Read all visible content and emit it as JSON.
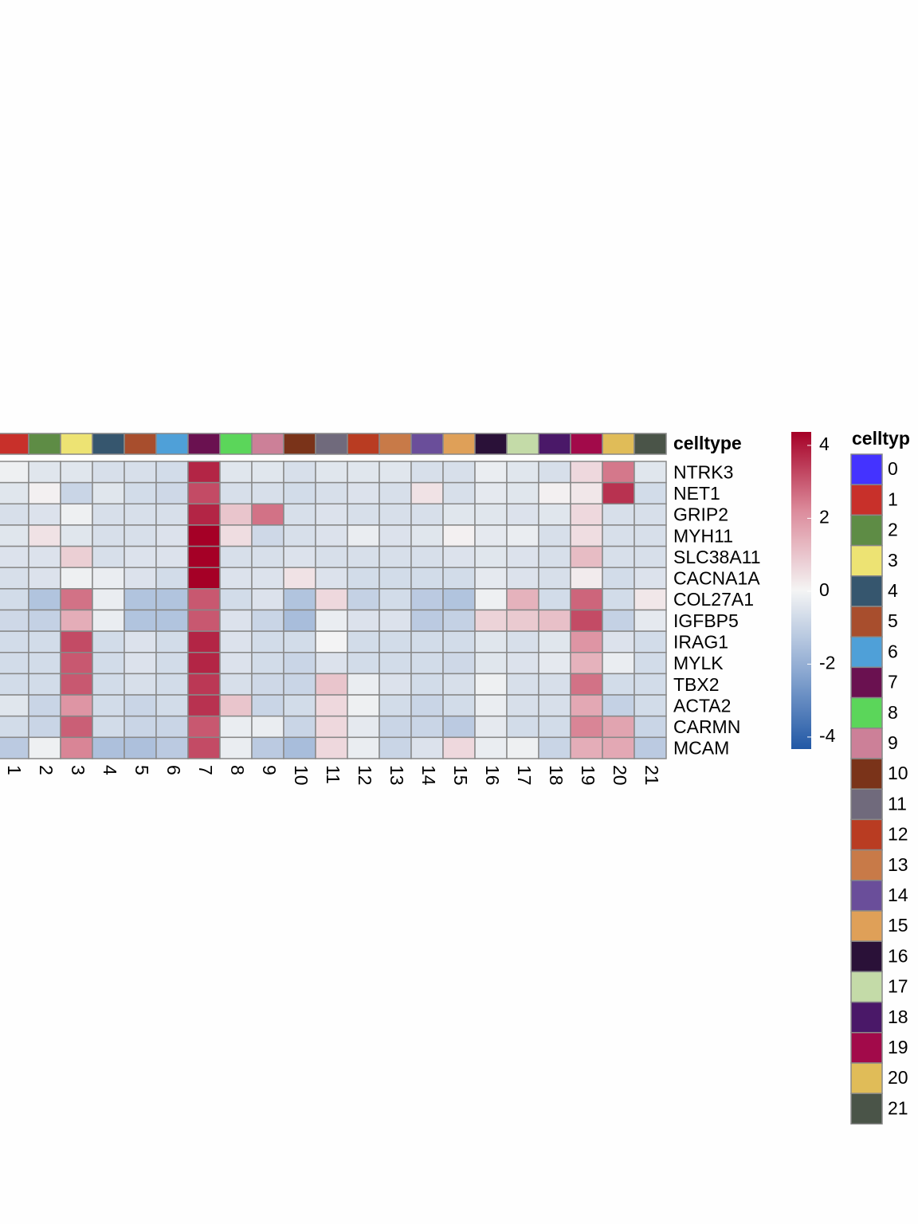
{
  "chart_data": {
    "type": "heatmap",
    "columns": [
      "1",
      "2",
      "3",
      "4",
      "5",
      "6",
      "7",
      "8",
      "9",
      "10",
      "11",
      "12",
      "13",
      "14",
      "15",
      "16",
      "17",
      "18",
      "19",
      "20",
      "21"
    ],
    "rows": [
      "NTRK3",
      "NET1",
      "GRIP2",
      "MYH11",
      "SLC38A11",
      "CACNA1A",
      "COL27A1",
      "IGFBP5",
      "IRAG1",
      "MYLK",
      "TBX2",
      "ACTA2",
      "CARMN",
      "MCAM"
    ],
    "values": [
      [
        -0.1,
        -0.4,
        -0.4,
        -0.6,
        -0.6,
        -0.7,
        3.8,
        -0.4,
        -0.4,
        -0.6,
        -0.4,
        -0.4,
        -0.4,
        -0.6,
        -0.6,
        -0.2,
        -0.4,
        -0.6,
        0.6,
        2.5,
        -0.4
      ],
      [
        -0.4,
        0.1,
        -0.9,
        -0.4,
        -0.7,
        -0.8,
        3.2,
        -0.6,
        -0.6,
        -0.7,
        -0.6,
        -0.5,
        -0.6,
        0.4,
        -0.6,
        -0.3,
        -0.4,
        0.1,
        0.3,
        3.6,
        -0.7
      ],
      [
        -0.6,
        -0.5,
        -0.1,
        -0.6,
        -0.6,
        -0.6,
        3.8,
        1.0,
        2.6,
        -0.6,
        -0.5,
        -0.6,
        -0.6,
        -0.6,
        -0.4,
        -0.4,
        -0.5,
        -0.4,
        0.6,
        -0.6,
        -0.6
      ],
      [
        -0.4,
        0.4,
        -0.4,
        -0.6,
        -0.6,
        -0.5,
        4.4,
        0.5,
        -0.8,
        -0.6,
        -0.5,
        -0.2,
        -0.5,
        -0.4,
        0.1,
        -0.3,
        -0.2,
        -0.6,
        0.5,
        -0.6,
        -0.6
      ],
      [
        -0.5,
        -0.5,
        0.8,
        -0.6,
        -0.5,
        -0.5,
        4.4,
        -0.6,
        -0.6,
        -0.5,
        -0.6,
        -0.6,
        -0.6,
        -0.6,
        -0.5,
        -0.4,
        -0.5,
        -0.6,
        1.2,
        -0.6,
        -0.6
      ],
      [
        -0.6,
        -0.5,
        -0.1,
        -0.2,
        -0.5,
        -0.7,
        4.4,
        -0.5,
        -0.5,
        0.4,
        -0.5,
        -0.7,
        -0.7,
        -0.7,
        -0.7,
        -0.3,
        -0.5,
        -0.6,
        0.2,
        -0.7,
        -0.5
      ],
      [
        -0.7,
        -1.4,
        2.6,
        -0.2,
        -1.4,
        -1.4,
        3.0,
        -0.7,
        -0.5,
        -1.4,
        0.6,
        -1.0,
        -0.7,
        -1.2,
        -1.4,
        -0.1,
        1.4,
        -0.7,
        2.8,
        -0.7,
        0.3
      ],
      [
        -0.8,
        -1.0,
        1.5,
        -0.2,
        -1.4,
        -1.4,
        3.0,
        -0.5,
        -0.9,
        -1.6,
        -0.2,
        -0.5,
        -0.5,
        -1.2,
        -1.0,
        0.7,
        0.9,
        1.1,
        3.2,
        -1.0,
        -0.3
      ],
      [
        -0.7,
        -0.7,
        3.2,
        -0.7,
        -0.5,
        -0.7,
        3.8,
        -0.5,
        -0.7,
        -0.7,
        0.0,
        -0.7,
        -0.7,
        -0.7,
        -0.7,
        -0.4,
        -0.6,
        -0.4,
        2.0,
        -0.5,
        -0.7
      ],
      [
        -0.7,
        -0.7,
        3.0,
        -0.7,
        -0.5,
        -0.7,
        3.8,
        -0.5,
        -0.7,
        -0.9,
        -0.5,
        -0.7,
        -0.7,
        -0.7,
        -0.8,
        -0.4,
        -0.5,
        -0.3,
        1.4,
        -0.2,
        -0.7
      ],
      [
        -0.7,
        -0.7,
        3.0,
        -0.7,
        -0.6,
        -0.7,
        3.5,
        -0.6,
        -0.8,
        -0.9,
        1.0,
        -0.2,
        -0.5,
        -0.7,
        -0.6,
        -0.1,
        -0.6,
        -0.6,
        2.6,
        -0.7,
        -0.7
      ],
      [
        -0.4,
        -0.9,
        2.0,
        -0.7,
        -0.9,
        -0.7,
        3.6,
        1.0,
        -0.9,
        -0.7,
        0.6,
        -0.1,
        -0.7,
        -0.9,
        -0.7,
        -0.2,
        -0.6,
        -0.6,
        1.6,
        -1.0,
        -0.7
      ],
      [
        -0.7,
        -0.9,
        2.9,
        -0.7,
        -0.9,
        -0.9,
        3.0,
        -0.2,
        -0.2,
        -0.9,
        0.6,
        -0.3,
        -0.9,
        -0.9,
        -1.2,
        -0.3,
        -0.7,
        -0.7,
        2.3,
        1.7,
        -0.9
      ],
      [
        -1.2,
        -0.1,
        2.3,
        -1.5,
        -1.5,
        -1.2,
        3.2,
        -0.2,
        -1.2,
        -1.6,
        0.6,
        -0.2,
        -0.9,
        -0.5,
        0.6,
        -0.2,
        -0.1,
        -0.9,
        1.5,
        1.6,
        -1.2
      ]
    ],
    "annotation_label": "celltype",
    "clim": [
      -4.33,
      4.37
    ],
    "colorbar_ticks": [
      4,
      2,
      0,
      -2,
      -4
    ],
    "colormap": [
      "#2158a5",
      "#8eaad2",
      "#f4f4f4",
      "#dc8c9c",
      "#a50026"
    ],
    "legend": {
      "title": "celltyp",
      "categories": [
        "0",
        "1",
        "2",
        "3",
        "4",
        "5",
        "6",
        "7",
        "8",
        "9",
        "10",
        "11",
        "12",
        "13",
        "14",
        "15",
        "16",
        "17",
        "18",
        "19",
        "20",
        "21"
      ],
      "colors": [
        "#4433ff",
        "#c8302a",
        "#5e8c45",
        "#ede373",
        "#36566e",
        "#a84e2d",
        "#4fa0d8",
        "#6a1150",
        "#5bd65a",
        "#cc8098",
        "#7a3319",
        "#706a7c",
        "#b93c22",
        "#c87a48",
        "#6a4e9a",
        "#dfa058",
        "#2a1138",
        "#c4dba8",
        "#4a1868",
        "#a20a4a",
        "#e0bc58",
        "#4a5448"
      ]
    }
  }
}
